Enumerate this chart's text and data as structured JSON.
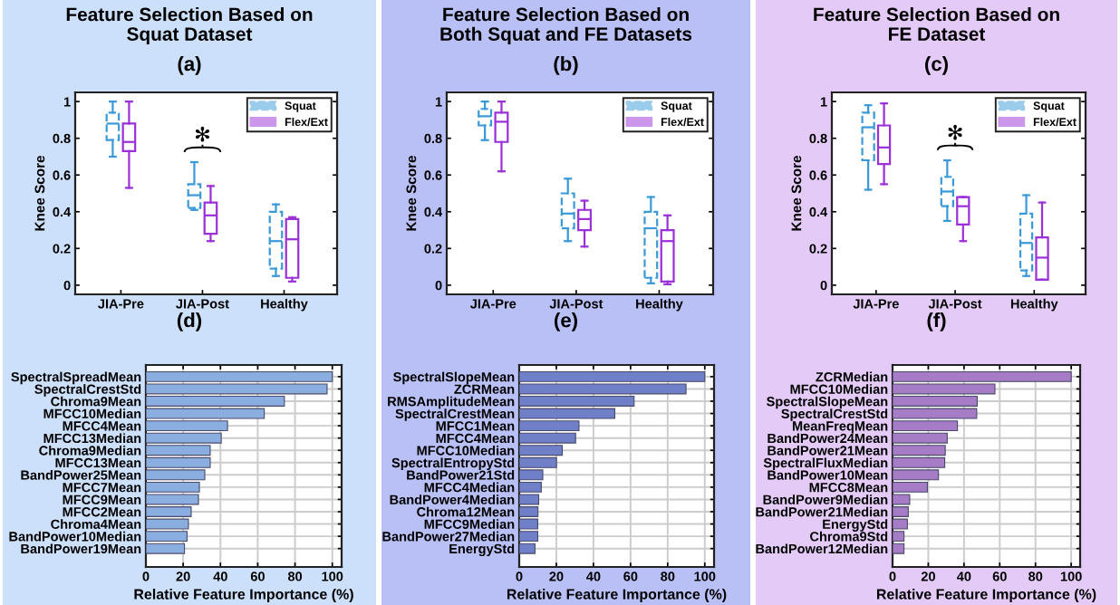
{
  "chart_data": [
    {
      "type": "box",
      "title": "Feature Selection Based on\nSquat Dataset",
      "subtitle": "(a)",
      "ylabel": "Knee Score",
      "categories": [
        "JIA-Pre",
        "JIA-Post",
        "Healthy"
      ],
      "ylim": [
        -0.05,
        1.05
      ],
      "yticks": [
        0,
        0.2,
        0.4,
        0.6,
        0.8,
        1
      ],
      "legend": "top right",
      "annotations": [
        "✻"
      ],
      "series": [
        {
          "name": "Squat",
          "color": "#3a9ad9",
          "line_style": "dashed",
          "boxes": [
            {
              "low": 0.7,
              "q1": 0.79,
              "median": 0.88,
              "q3": 0.94,
              "high": 1.0
            },
            {
              "low": 0.41,
              "q1": 0.42,
              "median": 0.49,
              "q3": 0.55,
              "high": 0.67
            },
            {
              "low": 0.05,
              "q1": 0.09,
              "median": 0.24,
              "q3": 0.4,
              "high": 0.44
            }
          ]
        },
        {
          "name": "Flex/Ext",
          "color": "#9b30d9",
          "line_style": "solid",
          "boxes": [
            {
              "low": 0.53,
              "q1": 0.73,
              "median": 0.78,
              "q3": 0.88,
              "high": 1.0
            },
            {
              "low": 0.24,
              "q1": 0.28,
              "median": 0.38,
              "q3": 0.45,
              "high": 0.54
            },
            {
              "low": 0.02,
              "q1": 0.04,
              "median": 0.25,
              "q3": 0.36,
              "high": 0.37
            }
          ]
        }
      ]
    },
    {
      "type": "box",
      "title": "Feature Selection Based on\nBoth Squat and FE Datasets",
      "subtitle": "(b)",
      "ylabel": "Knee Score",
      "categories": [
        "JIA-Pre",
        "JIA-Post",
        "Healthy"
      ],
      "ylim": [
        -0.05,
        1.05
      ],
      "yticks": [
        0,
        0.2,
        0.4,
        0.6,
        0.8,
        1
      ],
      "legend": "top right",
      "series": [
        {
          "name": "Squat",
          "color": "#3a9ad9",
          "line_style": "dashed",
          "boxes": [
            {
              "low": 0.79,
              "q1": 0.87,
              "median": 0.92,
              "q3": 0.96,
              "high": 1.0
            },
            {
              "low": 0.24,
              "q1": 0.31,
              "median": 0.39,
              "q3": 0.5,
              "high": 0.58
            },
            {
              "low": 0.01,
              "q1": 0.04,
              "median": 0.31,
              "q3": 0.4,
              "high": 0.48
            }
          ]
        },
        {
          "name": "Flex/Ext",
          "color": "#9b30d9",
          "line_style": "solid",
          "boxes": [
            {
              "low": 0.62,
              "q1": 0.78,
              "median": 0.89,
              "q3": 0.94,
              "high": 1.0
            },
            {
              "low": 0.21,
              "q1": 0.3,
              "median": 0.36,
              "q3": 0.41,
              "high": 0.46
            },
            {
              "low": 0.005,
              "q1": 0.02,
              "median": 0.24,
              "q3": 0.3,
              "high": 0.38
            }
          ]
        }
      ]
    },
    {
      "type": "box",
      "title": "Feature Selection Based on\nFE Dataset",
      "subtitle": "(c)",
      "ylabel": "Knee Score",
      "categories": [
        "JIA-Pre",
        "JIA-Post",
        "Healthy"
      ],
      "ylim": [
        -0.05,
        1.05
      ],
      "yticks": [
        0,
        0.2,
        0.4,
        0.6,
        0.8,
        1
      ],
      "legend": "top right",
      "annotations": [
        "✻"
      ],
      "series": [
        {
          "name": "Squat",
          "color": "#3a9ad9",
          "line_style": "dashed",
          "boxes": [
            {
              "low": 0.52,
              "q1": 0.68,
              "median": 0.86,
              "q3": 0.94,
              "high": 0.98
            },
            {
              "low": 0.35,
              "q1": 0.43,
              "median": 0.51,
              "q3": 0.59,
              "high": 0.68
            },
            {
              "low": 0.05,
              "q1": 0.08,
              "median": 0.23,
              "q3": 0.39,
              "high": 0.49
            }
          ]
        },
        {
          "name": "Flex/Ext",
          "color": "#9b30d9",
          "line_style": "solid",
          "boxes": [
            {
              "low": 0.55,
              "q1": 0.66,
              "median": 0.75,
              "q3": 0.87,
              "high": 0.99
            },
            {
              "low": 0.24,
              "q1": 0.33,
              "median": 0.43,
              "q3": 0.48,
              "high": 0.48
            },
            {
              "low": 0.03,
              "q1": 0.03,
              "median": 0.15,
              "q3": 0.26,
              "high": 0.45
            }
          ]
        }
      ]
    },
    {
      "type": "bar",
      "orientation": "horizontal",
      "title": "(d)",
      "xlabel": "Relative Feature Importance (%)",
      "color": "#8aaee0",
      "grid": true,
      "xlim": [
        0,
        105
      ],
      "xticks": [
        0,
        20,
        40,
        60,
        80,
        100
      ],
      "categories": [
        "SpectralSpreadMean",
        "SpectralCrestStd",
        "Chroma9Mean",
        "MFCC10Median",
        "MFCC4Mean",
        "MFCC13Median",
        "Chroma9Median",
        "MFCC13Mean",
        "BandPower25Mean",
        "MFCC7Mean",
        "MFCC9Mean",
        "MFCC2Mean",
        "Chroma4Mean",
        "BandPower10Median",
        "BandPower19Mean"
      ],
      "values": [
        100,
        97.2,
        74.3,
        63.5,
        43.8,
        40.4,
        34.5,
        34.5,
        31.6,
        28.7,
        28.2,
        24.3,
        22.8,
        22.1,
        20.7
      ]
    },
    {
      "type": "bar",
      "orientation": "horizontal",
      "title": "(e)",
      "xlabel": "Relative Feature Importance (%)",
      "color": "#6f7fc8",
      "grid": true,
      "xlim": [
        0,
        105
      ],
      "xticks": [
        0,
        20,
        40,
        60,
        80,
        100
      ],
      "categories": [
        "SpectralSlopeMean",
        "ZCRMean",
        "RMSAmplitudeMean",
        "SpectralCrestMean",
        "MFCC1Mean",
        "MFCC4Mean",
        "MFCC10Median",
        "SpectralEntropyStd",
        "BandPower21Std",
        "MFCC4Median",
        "BandPower4Median",
        "Chroma12Mean",
        "MFCC9Median",
        "BandPower27Median",
        "EnergyStd"
      ],
      "values": [
        100,
        89.9,
        61.9,
        51.5,
        32.2,
        30.4,
        23.2,
        20.1,
        12.7,
        11.9,
        10.5,
        10.1,
        10.0,
        10.0,
        8.5
      ]
    },
    {
      "type": "bar",
      "orientation": "horizontal",
      "title": "(f)",
      "xlabel": "Relative Feature Importance (%)",
      "color": "#a67cc6",
      "grid": true,
      "xlim": [
        0,
        105
      ],
      "xticks": [
        0,
        20,
        40,
        60,
        80,
        100
      ],
      "categories": [
        "ZCRMedian",
        "MFCC10Median",
        "SpectralSlopeMean",
        "SpectralCrestStd",
        "MeanFreqMean",
        "BandPower24Mean",
        "BandPower21Mean",
        "SpectralFluxMedian",
        "BandPower10Mean",
        "MFCC8Mean",
        "BandPower9Median",
        "BandPower21Median",
        "EnergyStd",
        "Chroma9Std",
        "BandPower12Median"
      ],
      "values": [
        100,
        57.3,
        47.4,
        47.1,
        36.3,
        30.6,
        29.5,
        29.2,
        25.7,
        19.5,
        9.6,
        8.8,
        8.3,
        6.4,
        6.4
      ]
    }
  ]
}
